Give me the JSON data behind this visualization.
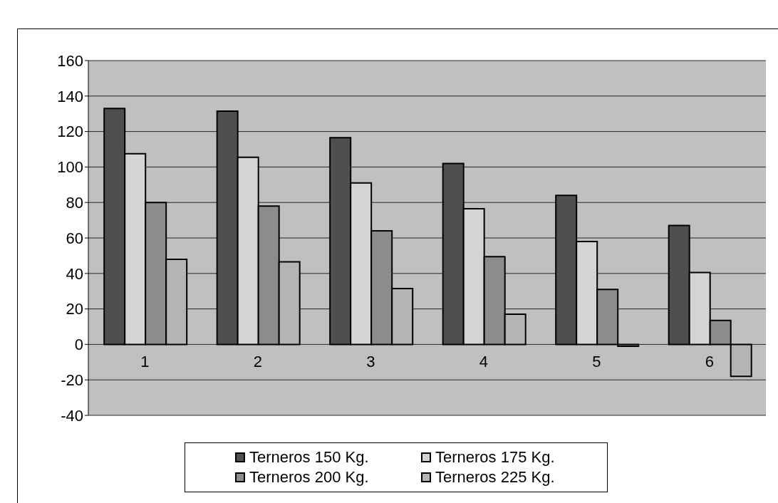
{
  "chart_data": {
    "type": "bar",
    "categories": [
      "1",
      "2",
      "3",
      "4",
      "5",
      "6"
    ],
    "series": [
      {
        "name": "Terneros 150 Kg.",
        "color": "#4f4f4f",
        "values": [
          133,
          131.5,
          116.5,
          102,
          84,
          67
        ]
      },
      {
        "name": "Terneros 175 Kg.",
        "color": "#d4d4d4",
        "values": [
          107.5,
          105.5,
          91,
          76.5,
          58,
          40.5
        ]
      },
      {
        "name": "Terneros 200 Kg.",
        "color": "#8c8c8c",
        "values": [
          80,
          78,
          64,
          49.5,
          31,
          13.5
        ]
      },
      {
        "name": "Terneros 225 Kg.",
        "color": "#b4b4b4",
        "values": [
          48,
          46.5,
          31.5,
          17,
          -1,
          -18
        ]
      }
    ],
    "ylim": [
      -40,
      160
    ],
    "yticks": [
      -40,
      -20,
      0,
      20,
      40,
      60,
      80,
      100,
      120,
      140,
      160
    ],
    "grid": "y",
    "legend": "bottom"
  }
}
